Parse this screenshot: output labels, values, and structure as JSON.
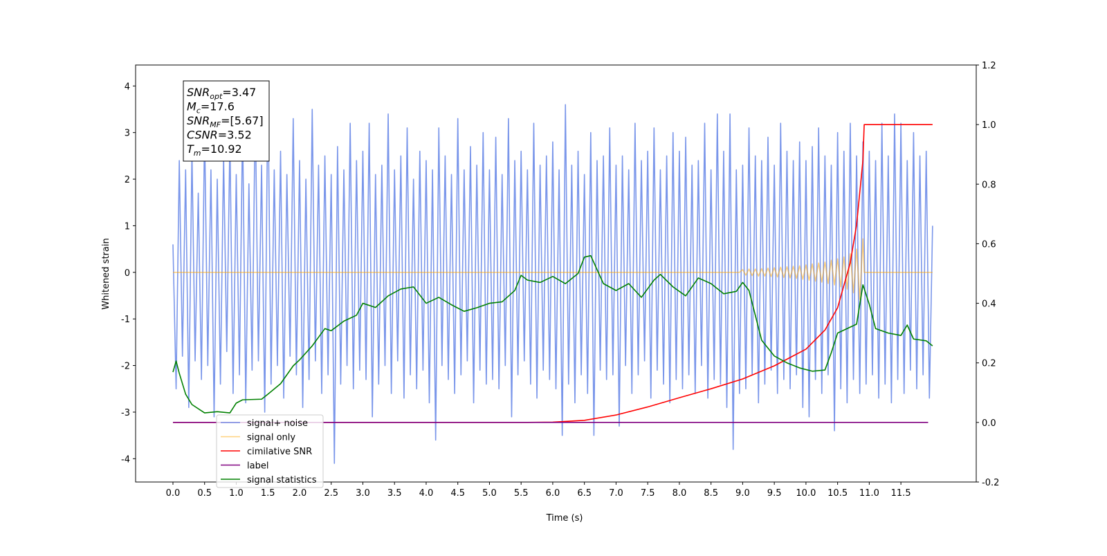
{
  "chart_data": {
    "type": "line",
    "xlabel": "Time (s)",
    "ylabel": "Whitened strain",
    "xlim": [
      -0.59,
      12.69
    ],
    "ylim": [
      -4.5,
      4.45
    ],
    "y2lim": [
      -0.2,
      1.2
    ],
    "xticks": [
      {
        "value": 0,
        "label": "0.0"
      },
      0.5,
      {
        "value": 1,
        "label": "1.0"
      },
      1.5,
      {
        "value": 2,
        "label": "2.0"
      },
      2.5,
      {
        "value": 3,
        "label": "3.0"
      },
      3.5,
      {
        "value": 4,
        "label": "4.0"
      },
      4.5,
      {
        "value": 5,
        "label": "5.0"
      },
      5.5,
      {
        "value": 6,
        "label": "6.0"
      },
      6.5,
      {
        "value": 7,
        "label": "7.0"
      },
      7.5,
      {
        "value": 8,
        "label": "8.0"
      },
      8.5,
      {
        "value": 9,
        "label": "9.0"
      },
      9.5,
      {
        "value": 10,
        "label": "10.0"
      },
      10.5,
      {
        "value": 11,
        "label": "11.0"
      },
      11.5
    ],
    "yticks": [
      -4,
      -3,
      -2,
      -1,
      0,
      1,
      2,
      3,
      4
    ],
    "y2ticks": [
      -0.2,
      {
        "value": 0,
        "label": "0.0"
      },
      0.2,
      0.4,
      0.6,
      0.8,
      {
        "value": 1,
        "label": "1.0"
      },
      1.2
    ],
    "legend": "lower left",
    "annotation": [
      {
        "name": "SNR",
        "sub": "opt",
        "text": "=3.47"
      },
      {
        "name": "M",
        "sub": "c",
        "text": "=17.6"
      },
      {
        "name": "SNR",
        "sub": "MF",
        "text": "=[5.67]"
      },
      {
        "name": "CSNR",
        "text": "=3.52"
      },
      {
        "name": "T",
        "sub": "m",
        "text": "=10.92"
      }
    ],
    "series": [
      {
        "name": "signal+ noise",
        "color": "#4169e1",
        "alpha": 0.7,
        "x": [
          0,
          0.05,
          0.1,
          0.15,
          0.2,
          0.25,
          0.3,
          0.35,
          0.4,
          0.45,
          0.5,
          0.55,
          0.6,
          0.65,
          0.7,
          0.75,
          0.8,
          0.85,
          0.9,
          0.95,
          1,
          1.05,
          1.1,
          1.15,
          1.2,
          1.25,
          1.3,
          1.35,
          1.4,
          1.45,
          1.5,
          1.55,
          1.6,
          1.65,
          1.7,
          1.75,
          1.8,
          1.85,
          1.9,
          1.95,
          2,
          2.05,
          2.1,
          2.15,
          2.2,
          2.25,
          2.3,
          2.35,
          2.4,
          2.45,
          2.5,
          2.55,
          2.6,
          2.65,
          2.7,
          2.75,
          2.8,
          2.85,
          2.9,
          2.95,
          3,
          3.05,
          3.1,
          3.15,
          3.2,
          3.25,
          3.3,
          3.35,
          3.4,
          3.45,
          3.5,
          3.55,
          3.6,
          3.65,
          3.7,
          3.75,
          3.8,
          3.85,
          3.9,
          3.95,
          4,
          4.05,
          4.1,
          4.15,
          4.2,
          4.25,
          4.3,
          4.35,
          4.4,
          4.45,
          4.5,
          4.55,
          4.6,
          4.65,
          4.7,
          4.75,
          4.8,
          4.85,
          4.9,
          4.95,
          5,
          5.05,
          5.1,
          5.15,
          5.2,
          5.25,
          5.3,
          5.35,
          5.4,
          5.45,
          5.5,
          5.55,
          5.6,
          5.65,
          5.7,
          5.75,
          5.8,
          5.85,
          5.9,
          5.95,
          6,
          6.05,
          6.1,
          6.15,
          6.2,
          6.25,
          6.3,
          6.35,
          6.4,
          6.45,
          6.5,
          6.55,
          6.6,
          6.65,
          6.7,
          6.75,
          6.8,
          6.85,
          6.9,
          6.95,
          7,
          7.05,
          7.1,
          7.15,
          7.2,
          7.25,
          7.3,
          7.35,
          7.4,
          7.45,
          7.5,
          7.55,
          7.6,
          7.65,
          7.7,
          7.75,
          7.8,
          7.85,
          7.9,
          7.95,
          8,
          8.05,
          8.1,
          8.15,
          8.2,
          8.25,
          8.3,
          8.35,
          8.4,
          8.45,
          8.5,
          8.55,
          8.6,
          8.65,
          8.7,
          8.75,
          8.8,
          8.85,
          8.9,
          8.95,
          9,
          9.05,
          9.1,
          9.15,
          9.2,
          9.25,
          9.3,
          9.35,
          9.4,
          9.45,
          9.5,
          9.55,
          9.6,
          9.65,
          9.7,
          9.75,
          9.8,
          9.85,
          9.9,
          9.95,
          10,
          10.05,
          10.1,
          10.15,
          10.2,
          10.25,
          10.3,
          10.35,
          10.4,
          10.45,
          10.5,
          10.55,
          10.6,
          10.65,
          10.7,
          10.75,
          10.8,
          10.85,
          10.9,
          10.95,
          11,
          11.05,
          11.1,
          11.15,
          11.2,
          11.25,
          11.3,
          11.35,
          11.4,
          11.45,
          11.5,
          11.55,
          11.6,
          11.65,
          11.7,
          11.75,
          11.8,
          11.85,
          11.9,
          11.95,
          12
        ],
        "values": [
          0.6,
          -2.5,
          2.4,
          -1.8,
          2.2,
          -2.9,
          2.6,
          -1.9,
          1.7,
          -2.3,
          3.1,
          -2.0,
          2.2,
          -3.1,
          2.0,
          -2.4,
          2.5,
          -1.7,
          2.9,
          -2.6,
          2.1,
          -2.2,
          3.2,
          -2.8,
          1.9,
          -2.1,
          3.6,
          -1.9,
          2.3,
          -3.0,
          4.0,
          -2.4,
          2.2,
          -2.0,
          2.6,
          -2.7,
          2.1,
          -1.8,
          3.3,
          -2.2,
          2.4,
          -2.9,
          2.0,
          -2.3,
          3.5,
          -1.9,
          2.3,
          -2.6,
          2.5,
          -2.2,
          2.1,
          -4.1,
          2.7,
          -2.4,
          2.2,
          -2.0,
          3.2,
          -2.5,
          2.4,
          -2.1,
          2.6,
          -2.3,
          3.2,
          -3.1,
          2.1,
          -2.4,
          2.3,
          -2.0,
          3.4,
          -2.6,
          2.2,
          -1.9,
          2.5,
          -2.7,
          3.1,
          -2.2,
          2.0,
          -2.5,
          2.6,
          -2.1,
          2.4,
          -2.8,
          2.2,
          -3.6,
          3.1,
          -2.0,
          2.5,
          -2.3,
          2.1,
          -2.6,
          3.3,
          -2.2,
          2.2,
          -1.9,
          2.7,
          -2.8,
          2.3,
          -2.1,
          3.0,
          -2.4,
          2.2,
          -2.3,
          2.9,
          -2.5,
          2.1,
          -2.0,
          3.3,
          -3.1,
          2.4,
          -2.2,
          2.6,
          -1.9,
          2.2,
          -2.4,
          3.2,
          -2.7,
          2.3,
          -2.1,
          2.5,
          -2.3,
          2.8,
          -2.5,
          2.2,
          -3.5,
          3.6,
          -2.4,
          2.3,
          -2.8,
          2.6,
          -2.2,
          2.1,
          -2.6,
          3.0,
          -3.5,
          2.4,
          -2.1,
          2.5,
          -2.3,
          3.1,
          -2.2,
          2.3,
          -3.3,
          2.5,
          -2.0,
          2.2,
          -2.6,
          3.2,
          -2.2,
          2.4,
          -1.9,
          2.6,
          -2.7,
          3.1,
          -2.1,
          2.2,
          -2.4,
          2.5,
          -2.8,
          3.0,
          -2.3,
          2.6,
          -2.5,
          2.9,
          -2.2,
          2.3,
          -2.6,
          2.4,
          -2.0,
          3.2,
          -2.7,
          2.2,
          -2.3,
          3.4,
          -2.4,
          2.6,
          -2.9,
          3.4,
          -3.8,
          2.2,
          -2.6,
          2.3,
          -2.5,
          3.1,
          -2.2,
          2.5,
          -2.8,
          2.4,
          -2.4,
          2.9,
          -2.1,
          2.3,
          -2.6,
          3.2,
          -2.3,
          2.6,
          -2.5,
          2.4,
          -2.2,
          2.8,
          -2.9,
          2.4,
          -3.1,
          2.7,
          -2.3,
          3.1,
          -2.6,
          2.5,
          -2.2,
          2.3,
          -3.4,
          3.0,
          -2.5,
          2.6,
          -2.8,
          3.2,
          -2.3,
          2.5,
          -2.6,
          2.8,
          -2.4,
          2.6,
          -2.2,
          2.4,
          -2.7,
          3.2,
          -2.4,
          2.5,
          -2.8,
          3.4,
          -2.3,
          3.2,
          -2.6,
          2.4,
          -2.1,
          3.0,
          -2.5,
          2.5,
          -2.2,
          2.6,
          -2.7,
          1.0
        ]
      },
      {
        "name": "signal only",
        "color": "#ffa500",
        "alpha": 0.5,
        "x": [
          0,
          8.95,
          9,
          9.05,
          9.1,
          9.15,
          9.2,
          9.25,
          9.3,
          9.35,
          9.4,
          9.45,
          9.5,
          9.55,
          9.6,
          9.65,
          9.7,
          9.75,
          9.8,
          9.85,
          9.9,
          9.95,
          10,
          10.05,
          10.1,
          10.15,
          10.2,
          10.25,
          10.3,
          10.35,
          10.4,
          10.45,
          10.5,
          10.55,
          10.6,
          10.65,
          10.7,
          10.75,
          10.8,
          10.85,
          10.9,
          10.92,
          12
        ],
        "values": [
          0,
          0,
          0.06,
          -0.06,
          0.07,
          -0.07,
          0.07,
          -0.08,
          0.08,
          -0.08,
          0.09,
          -0.09,
          0.1,
          -0.1,
          0.11,
          -0.11,
          0.12,
          -0.12,
          0.13,
          -0.13,
          0.14,
          -0.15,
          0.16,
          -0.17,
          0.18,
          -0.19,
          0.2,
          -0.21,
          0.22,
          -0.24,
          0.26,
          -0.27,
          0.29,
          -0.31,
          0.33,
          -0.36,
          0.4,
          -0.44,
          0.5,
          -0.58,
          0.72,
          0,
          0
        ]
      },
      {
        "name": "cimilative SNR",
        "color": "#ff0000",
        "axis": "y2",
        "x": [
          0,
          5.5,
          6,
          6.5,
          7,
          7.5,
          8,
          8.5,
          9,
          9.5,
          10,
          10.3,
          10.5,
          10.7,
          10.8,
          10.9,
          10.92,
          12
        ],
        "values": [
          0,
          0,
          0.001,
          0.007,
          0.025,
          0.052,
          0.083,
          0.113,
          0.146,
          0.19,
          0.246,
          0.31,
          0.385,
          0.536,
          0.664,
          0.88,
          1,
          1
        ]
      },
      {
        "name": "label",
        "color": "#800080",
        "axis": "y2",
        "x": [
          0,
          11.93
        ],
        "values": [
          0,
          0
        ]
      },
      {
        "name": "signal statistics",
        "color": "#008000",
        "axis": "y2",
        "x": [
          0,
          0.05,
          0.1,
          0.2,
          0.3,
          0.5,
          0.7,
          0.9,
          1,
          1.1,
          1.4,
          1.5,
          1.7,
          1.9,
          2,
          2.2,
          2.4,
          2.5,
          2.7,
          2.9,
          3,
          3.2,
          3.4,
          3.6,
          3.8,
          4,
          4.2,
          4.4,
          4.6,
          4.8,
          5,
          5.2,
          5.4,
          5.5,
          5.6,
          5.8,
          6,
          6.2,
          6.4,
          6.5,
          6.6,
          6.8,
          7,
          7.2,
          7.4,
          7.6,
          7.7,
          7.9,
          8.1,
          8.3,
          8.5,
          8.7,
          8.9,
          9,
          9.1,
          9.3,
          9.5,
          9.7,
          9.9,
          10.1,
          10.3,
          10.4,
          10.5,
          10.7,
          10.8,
          10.9,
          11,
          11.1,
          11.3,
          11.5,
          11.6,
          11.7,
          11.9,
          12
        ],
        "values": [
          0.169,
          0.206,
          0.165,
          0.095,
          0.06,
          0.032,
          0.036,
          0.032,
          0.065,
          0.076,
          0.078,
          0.095,
          0.13,
          0.19,
          0.21,
          0.257,
          0.315,
          0.308,
          0.34,
          0.36,
          0.4,
          0.386,
          0.425,
          0.448,
          0.455,
          0.4,
          0.42,
          0.395,
          0.373,
          0.385,
          0.4,
          0.405,
          0.443,
          0.494,
          0.478,
          0.47,
          0.49,
          0.466,
          0.5,
          0.555,
          0.56,
          0.466,
          0.443,
          0.466,
          0.42,
          0.478,
          0.497,
          0.455,
          0.425,
          0.485,
          0.466,
          0.432,
          0.44,
          0.47,
          0.443,
          0.276,
          0.223,
          0.2,
          0.183,
          0.172,
          0.176,
          0.234,
          0.3,
          0.32,
          0.33,
          0.462,
          0.397,
          0.315,
          0.3,
          0.292,
          0.327,
          0.28,
          0.274,
          0.257
        ]
      }
    ]
  }
}
